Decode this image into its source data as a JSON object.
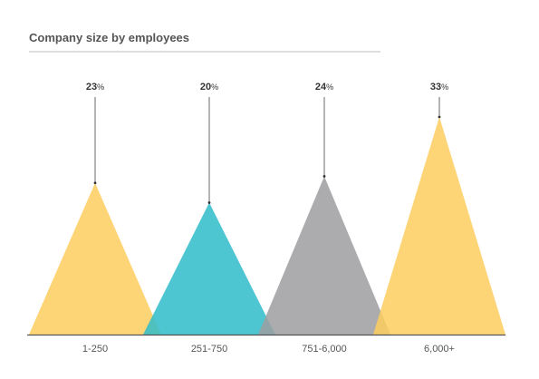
{
  "chart_data": {
    "type": "area",
    "title": "Company size by employees",
    "categories": [
      "1-250",
      "251-750",
      "751-6,000",
      "6,000+"
    ],
    "values": [
      23,
      20,
      24,
      33
    ],
    "value_suffix": "%",
    "ylim": [
      0,
      33
    ],
    "grid": false,
    "colors": [
      "#FDCC5E",
      "#2FBCCA",
      "#9E9DA1",
      "#FDCC5E"
    ]
  }
}
